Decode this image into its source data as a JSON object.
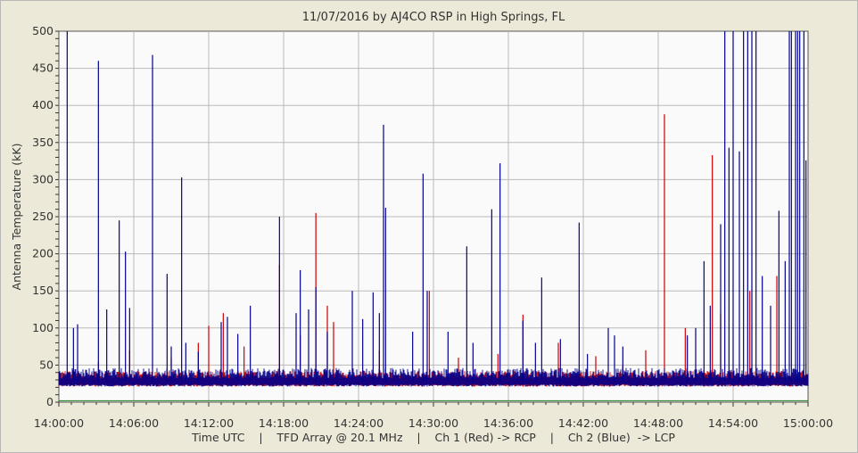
{
  "chart_data": {
    "type": "line",
    "title": "11/07/2016  by  AJ4CO RSP  in  High Springs, FL",
    "xlabel": "Time UTC    |    TFD Array @ 20.1 MHz    |    Ch 1 (Red) -> RCP    |    Ch 2 (Blue)  -> LCP",
    "ylabel": "Antenna Temperature (kK)",
    "x_ticks": [
      "14:00:00",
      "14:06:00",
      "14:12:00",
      "14:18:00",
      "14:24:00",
      "14:30:00",
      "14:36:00",
      "14:42:00",
      "14:48:00",
      "14:54:00",
      "15:00:00"
    ],
    "y_ticks": [
      "0",
      "50",
      "100",
      "150",
      "200",
      "250",
      "300",
      "350",
      "400",
      "450",
      "500"
    ],
    "xlim": [
      "14:00:00",
      "15:00:00"
    ],
    "ylim": [
      0,
      500
    ],
    "grid": true,
    "baseline_kK": 28,
    "series": [
      {
        "color": "#cc0000",
        "spikes": [
          {
            "t": "14:03:10",
            "v": 55
          },
          {
            "t": "14:05:40",
            "v": 70
          },
          {
            "t": "14:09:00",
            "v": 60
          },
          {
            "t": "14:11:10",
            "v": 80
          },
          {
            "t": "14:12:00",
            "v": 103
          },
          {
            "t": "14:13:10",
            "v": 120
          },
          {
            "t": "14:14:50",
            "v": 75
          },
          {
            "t": "14:17:40",
            "v": 185
          },
          {
            "t": "14:19:20",
            "v": 90
          },
          {
            "t": "14:20:35",
            "v": 255
          },
          {
            "t": "14:21:30",
            "v": 130
          },
          {
            "t": "14:22:00",
            "v": 108
          },
          {
            "t": "14:25:40",
            "v": 70
          },
          {
            "t": "14:29:40",
            "v": 150
          },
          {
            "t": "14:32:00",
            "v": 60
          },
          {
            "t": "14:35:10",
            "v": 65
          },
          {
            "t": "14:37:10",
            "v": 118
          },
          {
            "t": "14:40:00",
            "v": 80
          },
          {
            "t": "14:43:00",
            "v": 62
          },
          {
            "t": "14:45:10",
            "v": 50
          },
          {
            "t": "14:47:00",
            "v": 70
          },
          {
            "t": "14:48:30",
            "v": 388
          },
          {
            "t": "14:50:10",
            "v": 100
          },
          {
            "t": "14:52:20",
            "v": 333
          },
          {
            "t": "14:53:00",
            "v": 120
          },
          {
            "t": "14:55:20",
            "v": 150
          },
          {
            "t": "14:57:30",
            "v": 170
          }
        ]
      },
      {
        "color": "#00008b",
        "spikes": [
          {
            "t": "14:00:40",
            "v": 500
          },
          {
            "t": "14:01:10",
            "v": 100
          },
          {
            "t": "14:01:30",
            "v": 105
          },
          {
            "t": "14:03:10",
            "v": 460
          },
          {
            "t": "14:03:50",
            "v": 125
          },
          {
            "t": "14:04:50",
            "v": 245
          },
          {
            "t": "14:05:20",
            "v": 203
          },
          {
            "t": "14:05:40",
            "v": 127
          },
          {
            "t": "14:07:30",
            "v": 468
          },
          {
            "t": "14:08:40",
            "v": 173
          },
          {
            "t": "14:09:00",
            "v": 75
          },
          {
            "t": "14:09:50",
            "v": 303
          },
          {
            "t": "14:10:10",
            "v": 80
          },
          {
            "t": "14:11:10",
            "v": 68
          },
          {
            "t": "14:13:00",
            "v": 108
          },
          {
            "t": "14:13:30",
            "v": 115
          },
          {
            "t": "14:14:20",
            "v": 92
          },
          {
            "t": "14:15:20",
            "v": 130
          },
          {
            "t": "14:17:40",
            "v": 250
          },
          {
            "t": "14:19:00",
            "v": 120
          },
          {
            "t": "14:19:20",
            "v": 178
          },
          {
            "t": "14:20:00",
            "v": 125
          },
          {
            "t": "14:20:35",
            "v": 155
          },
          {
            "t": "14:21:30",
            "v": 95
          },
          {
            "t": "14:23:30",
            "v": 150
          },
          {
            "t": "14:24:20",
            "v": 112
          },
          {
            "t": "14:25:10",
            "v": 148
          },
          {
            "t": "14:25:40",
            "v": 120
          },
          {
            "t": "14:26:00",
            "v": 374
          },
          {
            "t": "14:26:10",
            "v": 262
          },
          {
            "t": "14:28:20",
            "v": 95
          },
          {
            "t": "14:29:10",
            "v": 308
          },
          {
            "t": "14:29:30",
            "v": 150
          },
          {
            "t": "14:31:10",
            "v": 95
          },
          {
            "t": "14:32:40",
            "v": 210
          },
          {
            "t": "14:33:10",
            "v": 80
          },
          {
            "t": "14:34:40",
            "v": 260
          },
          {
            "t": "14:35:20",
            "v": 322
          },
          {
            "t": "14:37:10",
            "v": 110
          },
          {
            "t": "14:38:10",
            "v": 80
          },
          {
            "t": "14:38:40",
            "v": 168
          },
          {
            "t": "14:40:10",
            "v": 85
          },
          {
            "t": "14:41:40",
            "v": 242
          },
          {
            "t": "14:42:20",
            "v": 65
          },
          {
            "t": "14:44:00",
            "v": 100
          },
          {
            "t": "14:44:30",
            "v": 90
          },
          {
            "t": "14:45:10",
            "v": 75
          },
          {
            "t": "14:50:20",
            "v": 90
          },
          {
            "t": "14:51:00",
            "v": 100
          },
          {
            "t": "14:51:40",
            "v": 190
          },
          {
            "t": "14:52:10",
            "v": 130
          },
          {
            "t": "14:53:00",
            "v": 240
          },
          {
            "t": "14:53:20",
            "v": 500
          },
          {
            "t": "14:53:40",
            "v": 343
          },
          {
            "t": "14:54:00",
            "v": 500
          },
          {
            "t": "14:54:30",
            "v": 338
          },
          {
            "t": "14:54:50",
            "v": 500
          },
          {
            "t": "14:55:10",
            "v": 500
          },
          {
            "t": "14:55:30",
            "v": 500
          },
          {
            "t": "14:55:50",
            "v": 500
          },
          {
            "t": "14:56:20",
            "v": 170
          },
          {
            "t": "14:57:00",
            "v": 130
          },
          {
            "t": "14:57:40",
            "v": 258
          },
          {
            "t": "14:58:10",
            "v": 190
          },
          {
            "t": "14:58:30",
            "v": 500
          },
          {
            "t": "14:58:40",
            "v": 500
          },
          {
            "t": "14:59:00",
            "v": 500
          },
          {
            "t": "14:59:10",
            "v": 500
          },
          {
            "t": "14:59:20",
            "v": 500
          },
          {
            "t": "14:59:40",
            "v": 500
          },
          {
            "t": "14:59:50",
            "v": 326
          }
        ]
      },
      {
        "color": "#1a7a1a",
        "constant_kK": 2
      }
    ]
  }
}
